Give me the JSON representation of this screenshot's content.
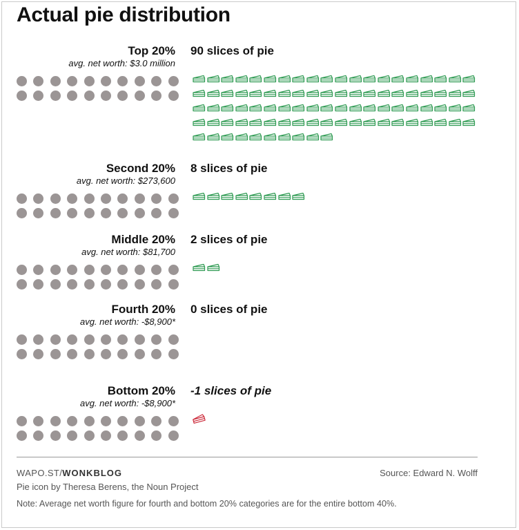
{
  "title": "Actual pie distribution",
  "colors": {
    "dot": "#9b9595",
    "pie_positive": "#2e9a52",
    "pie_negative": "#cc2b3b"
  },
  "icons": {
    "person": "circle-dot-icon",
    "slice": "pie-slice-icon"
  },
  "chart_data": {
    "type": "table",
    "title": "Actual pie distribution",
    "dots_per_group": 20,
    "groups": [
      {
        "label": "Top 20%",
        "sub": "avg. net worth: $3.0 million",
        "slices": 90,
        "slices_label": "90 slices of pie"
      },
      {
        "label": "Second 20%",
        "sub": "avg. net worth: $273,600",
        "slices": 8,
        "slices_label": "8 slices of pie"
      },
      {
        "label": "Middle 20%",
        "sub": "avg. net worth: $81,700",
        "slices": 2,
        "slices_label": "2 slices of pie"
      },
      {
        "label": "Fourth 20%",
        "sub": "avg. net worth: -$8,900*",
        "slices": 0,
        "slices_label": "0 slices of pie"
      },
      {
        "label": "Bottom 20%",
        "sub": "avg. net worth: -$8,900*",
        "slices": -1,
        "slices_label": "-1 slices of pie"
      }
    ]
  },
  "footer": {
    "credit_prefix": "WAPO.ST/",
    "credit_suffix": "WONKBLOG",
    "source": "Source: Edward N. Wolff",
    "icon_credit": "Pie icon by Theresa Berens, the Noun Project",
    "note": "Note: Average net worth figure for fourth and bottom 20% categories are for the entire bottom 40%."
  }
}
